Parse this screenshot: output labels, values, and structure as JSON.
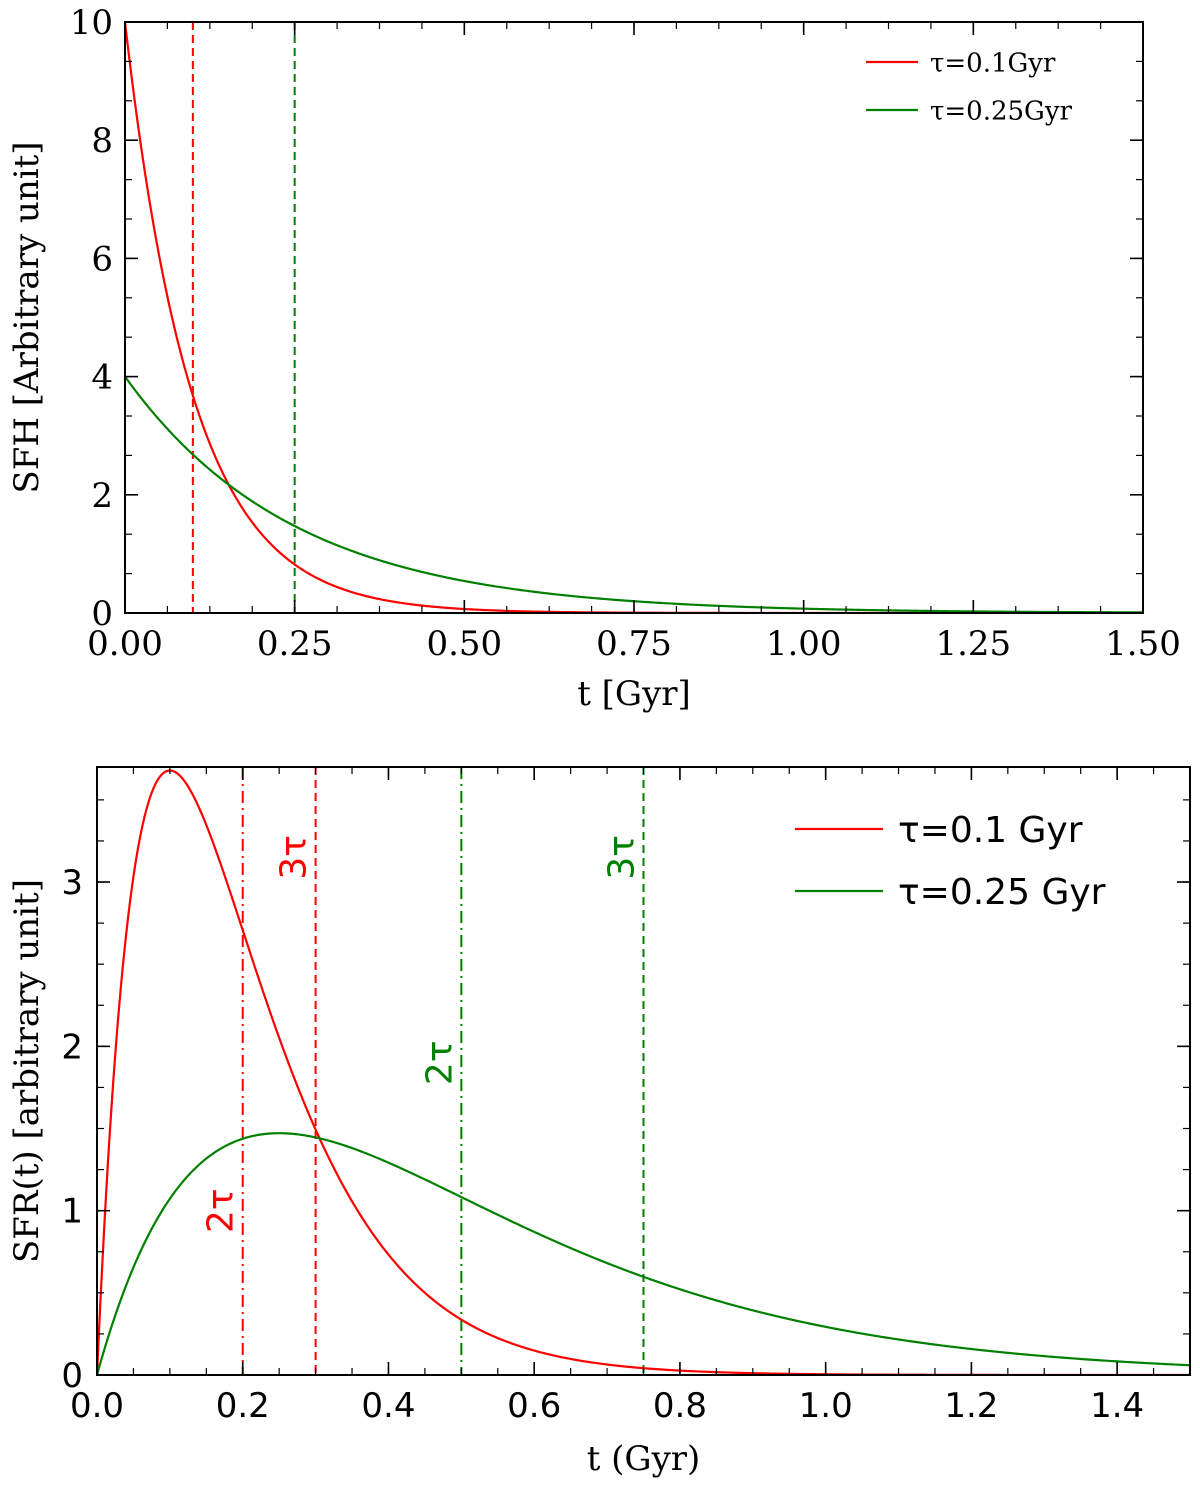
{
  "chart_data": [
    {
      "type": "line",
      "xlabel": "t [Gyr]",
      "ylabel": "SFH [Arbitrary unit]",
      "xlim": [
        0,
        1.5
      ],
      "ylim": [
        0,
        10
      ],
      "xticks": [
        "0.00",
        "0.25",
        "0.50",
        "0.75",
        "1.00",
        "1.25",
        "1.50"
      ],
      "xtick_values": [
        0,
        0.25,
        0.5,
        0.75,
        1.0,
        1.25,
        1.5
      ],
      "yticks": [
        "0",
        "2",
        "4",
        "6",
        "8",
        "10"
      ],
      "ytick_values": [
        0,
        2,
        4,
        6,
        8,
        10
      ],
      "legend_position": "top-right",
      "series": [
        {
          "name": "τ=0.1Gyr",
          "color": "#ff0000",
          "model": "exp(-t/τ)/τ",
          "tau": 0.1,
          "x": [
            0,
            0.1,
            0.15,
            0.25,
            0.5,
            0.75,
            1.0,
            1.5
          ],
          "values": [
            10,
            3.68,
            2.23,
            0.82,
            0.07,
            0.006,
            0.0005,
            0.0
          ]
        },
        {
          "name": "τ=0.25Gyr",
          "color": "#008000",
          "model": "exp(-t/τ)/τ",
          "tau": 0.25,
          "x": [
            0,
            0.1,
            0.15,
            0.25,
            0.5,
            0.75,
            1.0,
            1.5
          ],
          "values": [
            4,
            2.68,
            2.2,
            1.47,
            0.54,
            0.2,
            0.07,
            0.01
          ]
        }
      ],
      "vlines": [
        {
          "x": 0.1,
          "color": "#ff0000",
          "style": "dashed"
        },
        {
          "x": 0.25,
          "color": "#008000",
          "style": "dashed"
        }
      ]
    },
    {
      "type": "line",
      "xlabel": "t (Gyr)",
      "ylabel": "SFR(t) [arbitrary unit]",
      "xlim": [
        0,
        1.5
      ],
      "ylim": [
        0,
        3.7
      ],
      "xticks": [
        "0.0",
        "0.2",
        "0.4",
        "0.6",
        "0.8",
        "1.0",
        "1.2",
        "1.4"
      ],
      "xtick_values": [
        0,
        0.2,
        0.4,
        0.6,
        0.8,
        1.0,
        1.2,
        1.4
      ],
      "yticks": [
        "0",
        "1",
        "2",
        "3"
      ],
      "ytick_values": [
        0,
        1,
        2,
        3
      ],
      "legend_position": "top-right",
      "series": [
        {
          "name": "τ=0.1 Gyr",
          "color": "#ff0000",
          "model": "(t/τ^2)·exp(-t/τ)",
          "tau": 0.1,
          "x": [
            0,
            0.1,
            0.2,
            0.3,
            0.5,
            0.75,
            1.0,
            1.5
          ],
          "values": [
            0,
            3.68,
            2.71,
            1.49,
            0.34,
            0.04,
            0.005,
            0.0
          ]
        },
        {
          "name": "τ=0.25 Gyr",
          "color": "#008000",
          "model": "(t/τ^2)·exp(-t/τ)",
          "tau": 0.25,
          "x": [
            0,
            0.1,
            0.25,
            0.5,
            0.75,
            1.0,
            1.5
          ],
          "values": [
            0,
            1.07,
            1.47,
            1.08,
            0.6,
            0.29,
            0.06
          ]
        }
      ],
      "vlines": [
        {
          "x": 0.2,
          "color": "#ff0000",
          "style": "dashdot",
          "label": "2τ",
          "label_y": 1.0
        },
        {
          "x": 0.3,
          "color": "#ff0000",
          "style": "dashed",
          "label": "3τ",
          "label_y": 3.15
        },
        {
          "x": 0.5,
          "color": "#008000",
          "style": "dashdot",
          "label": "2τ",
          "label_y": 1.9
        },
        {
          "x": 0.75,
          "color": "#008000",
          "style": "dashed",
          "label": "3τ",
          "label_y": 3.15
        }
      ]
    }
  ]
}
